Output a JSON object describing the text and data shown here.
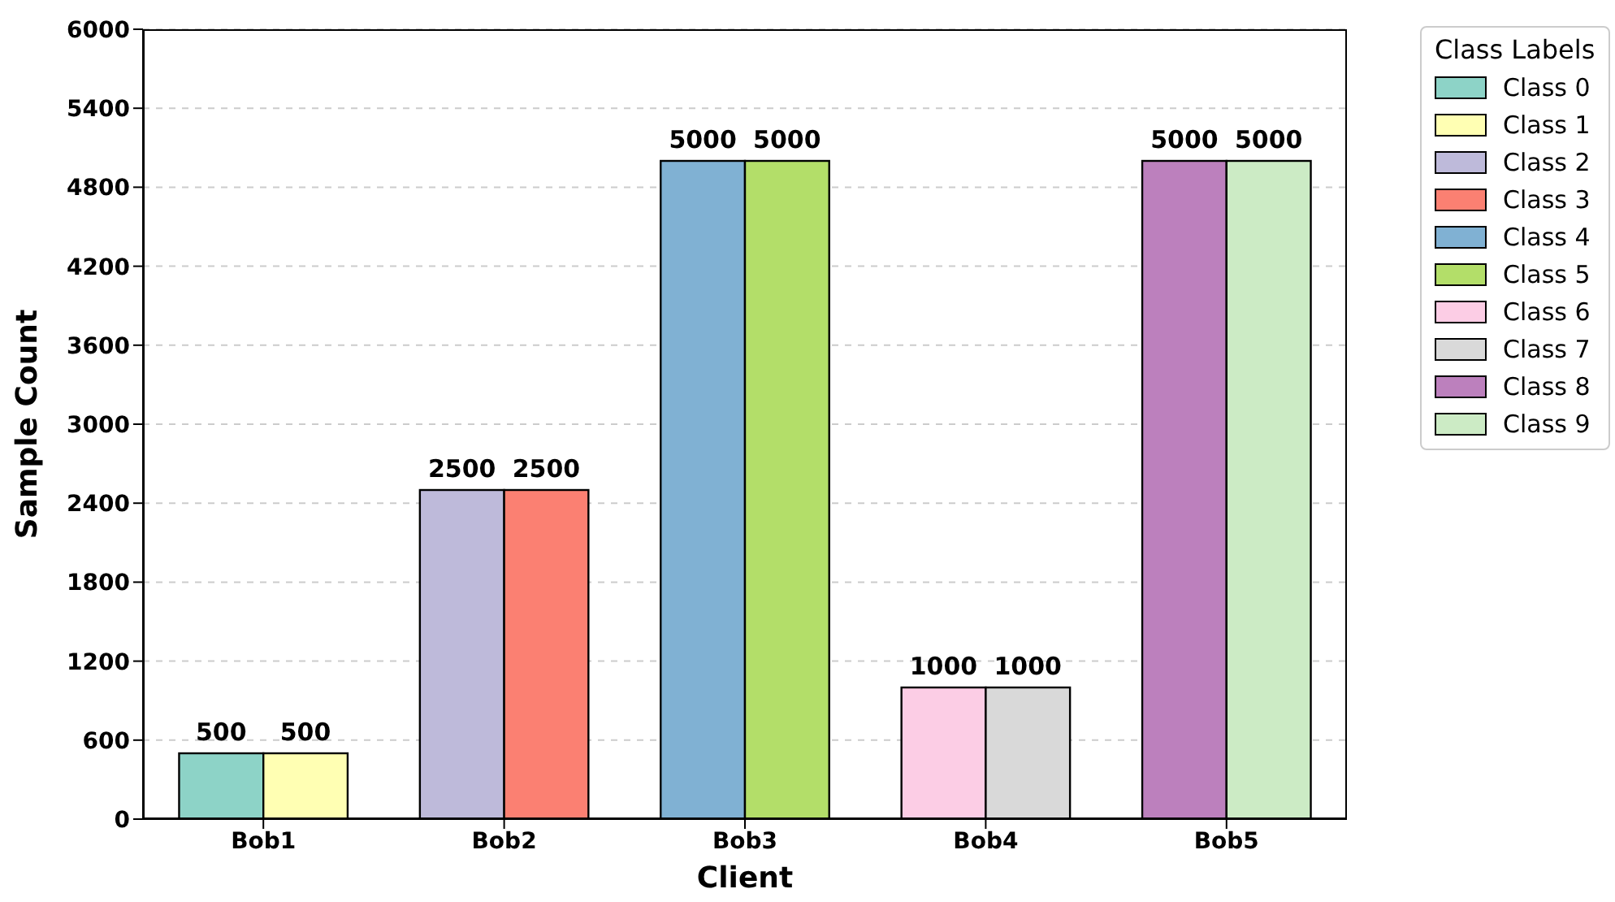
{
  "chart_data": {
    "type": "bar",
    "xlabel": "Client",
    "ylabel": "Sample Count",
    "legend_title": "Class Labels",
    "categories": [
      "Bob1",
      "Bob2",
      "Bob3",
      "Bob4",
      "Bob5"
    ],
    "series": [
      {
        "name": "Class 0",
        "color": "#8dd3c7",
        "values": [
          500,
          null,
          null,
          null,
          null
        ]
      },
      {
        "name": "Class 1",
        "color": "#ffffb3",
        "values": [
          500,
          null,
          null,
          null,
          null
        ]
      },
      {
        "name": "Class 2",
        "color": "#bebada",
        "values": [
          null,
          2500,
          null,
          null,
          null
        ]
      },
      {
        "name": "Class 3",
        "color": "#fb8072",
        "values": [
          null,
          2500,
          null,
          null,
          null
        ]
      },
      {
        "name": "Class 4",
        "color": "#80b1d3",
        "values": [
          null,
          null,
          5000,
          null,
          null
        ]
      },
      {
        "name": "Class 5",
        "color": "#b3de69",
        "values": [
          null,
          null,
          5000,
          null,
          null
        ]
      },
      {
        "name": "Class 6",
        "color": "#fccde5",
        "values": [
          null,
          null,
          null,
          1000,
          null
        ]
      },
      {
        "name": "Class 7",
        "color": "#d9d9d9",
        "values": [
          null,
          null,
          null,
          1000,
          null
        ]
      },
      {
        "name": "Class 8",
        "color": "#bc80bd",
        "values": [
          null,
          null,
          null,
          null,
          5000
        ]
      },
      {
        "name": "Class 9",
        "color": "#ccebc5",
        "values": [
          null,
          null,
          null,
          null,
          5000
        ]
      }
    ],
    "ylim": [
      0,
      6000
    ],
    "yticks": [
      0,
      600,
      1200,
      1800,
      2400,
      3000,
      3600,
      4200,
      4800,
      5400,
      6000
    ],
    "grid": "y",
    "legend": "top right",
    "data_labels": true
  }
}
